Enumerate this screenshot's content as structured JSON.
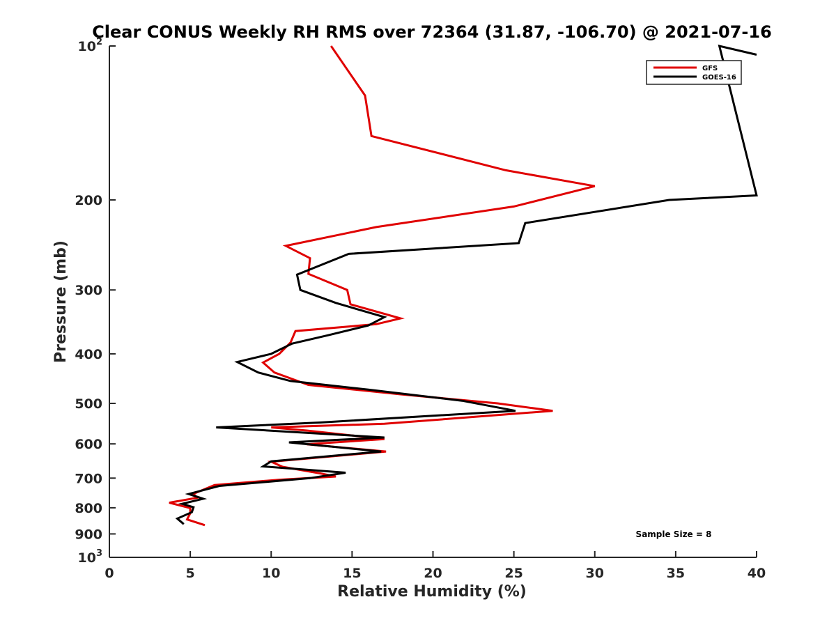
{
  "chart_data": {
    "type": "line",
    "title": "Clear CONUS Weekly RH RMS over 72364 (31.87, -106.70) @ 2021-07-16",
    "xlabel": "Relative Humidity (%)",
    "ylabel": "Pressure (mb)",
    "xlim": [
      0,
      40
    ],
    "ylim": [
      100,
      1000
    ],
    "y_scale": "log",
    "y_reversed": true,
    "grid": false,
    "legend_position": "top-right",
    "x_ticks": [
      "0",
      "5",
      "10",
      "15",
      "20",
      "25",
      "30",
      "35",
      "40"
    ],
    "y_ticks": [
      {
        "value": 100,
        "base": "10",
        "exp": "2"
      },
      {
        "value": 200,
        "label": "200"
      },
      {
        "value": 300,
        "label": "300"
      },
      {
        "value": 400,
        "label": "400"
      },
      {
        "value": 500,
        "label": "500"
      },
      {
        "value": 600,
        "label": "600"
      },
      {
        "value": 700,
        "label": "700"
      },
      {
        "value": 800,
        "label": "800"
      },
      {
        "value": 900,
        "label": "900"
      },
      {
        "value": 1000,
        "base": "10",
        "exp": "3"
      }
    ],
    "annotation": "Sample Size = 8",
    "series": [
      {
        "name": "GFS",
        "color": "#e00000",
        "points": [
          [
            13.7,
            100
          ],
          [
            15.8,
            125
          ],
          [
            16.2,
            150
          ],
          [
            24.5,
            175
          ],
          [
            30.0,
            188
          ],
          [
            25.0,
            206
          ],
          [
            16.5,
            226
          ],
          [
            10.9,
            246
          ],
          [
            12.4,
            260
          ],
          [
            12.3,
            279
          ],
          [
            14.7,
            300
          ],
          [
            14.9,
            320
          ],
          [
            18.0,
            341
          ],
          [
            16.5,
            350
          ],
          [
            11.5,
            361
          ],
          [
            11.2,
            380
          ],
          [
            10.5,
            400
          ],
          [
            9.5,
            416
          ],
          [
            10.2,
            435
          ],
          [
            12.3,
            460
          ],
          [
            18.0,
            480
          ],
          [
            24.0,
            500
          ],
          [
            27.4,
            517
          ],
          [
            17.0,
            548
          ],
          [
            10.0,
            557
          ],
          [
            12.2,
            565
          ],
          [
            17.0,
            587
          ],
          [
            12.2,
            601
          ],
          [
            17.1,
            621
          ],
          [
            10.0,
            650
          ],
          [
            10.7,
            665
          ],
          [
            13.0,
            685
          ],
          [
            14.0,
            695
          ],
          [
            10.5,
            705
          ],
          [
            6.5,
            722
          ],
          [
            5.2,
            751
          ],
          [
            5.4,
            765
          ],
          [
            3.7,
            782
          ],
          [
            5.0,
            801
          ],
          [
            5.0,
            820
          ],
          [
            4.8,
            843
          ],
          [
            5.9,
            865
          ]
        ]
      },
      {
        "name": "GOES-16",
        "color": "#000000",
        "points": [
          [
            40.0,
            104
          ],
          [
            37.7,
            100
          ],
          [
            40.0,
            196
          ],
          [
            34.6,
            200
          ],
          [
            25.7,
            222
          ],
          [
            25.3,
            243
          ],
          [
            14.8,
            255
          ],
          [
            11.6,
            280
          ],
          [
            11.8,
            300
          ],
          [
            14.0,
            318
          ],
          [
            17.0,
            339
          ],
          [
            16.0,
            352
          ],
          [
            13.5,
            368
          ],
          [
            11.3,
            382
          ],
          [
            10.0,
            400
          ],
          [
            7.9,
            415
          ],
          [
            9.2,
            435
          ],
          [
            11.2,
            452
          ],
          [
            16.0,
            470
          ],
          [
            21.8,
            494
          ],
          [
            25.1,
            517
          ],
          [
            13.0,
            545
          ],
          [
            6.6,
            557
          ],
          [
            17.0,
            583
          ],
          [
            11.1,
            596
          ],
          [
            16.8,
            621
          ],
          [
            10.0,
            649
          ],
          [
            9.5,
            664
          ],
          [
            14.6,
            683
          ],
          [
            12.4,
            700
          ],
          [
            6.8,
            725
          ],
          [
            4.9,
            752
          ],
          [
            5.8,
            768
          ],
          [
            4.5,
            786
          ],
          [
            5.2,
            798
          ],
          [
            5.1,
            816
          ],
          [
            4.2,
            840
          ],
          [
            4.6,
            861
          ]
        ]
      }
    ]
  }
}
